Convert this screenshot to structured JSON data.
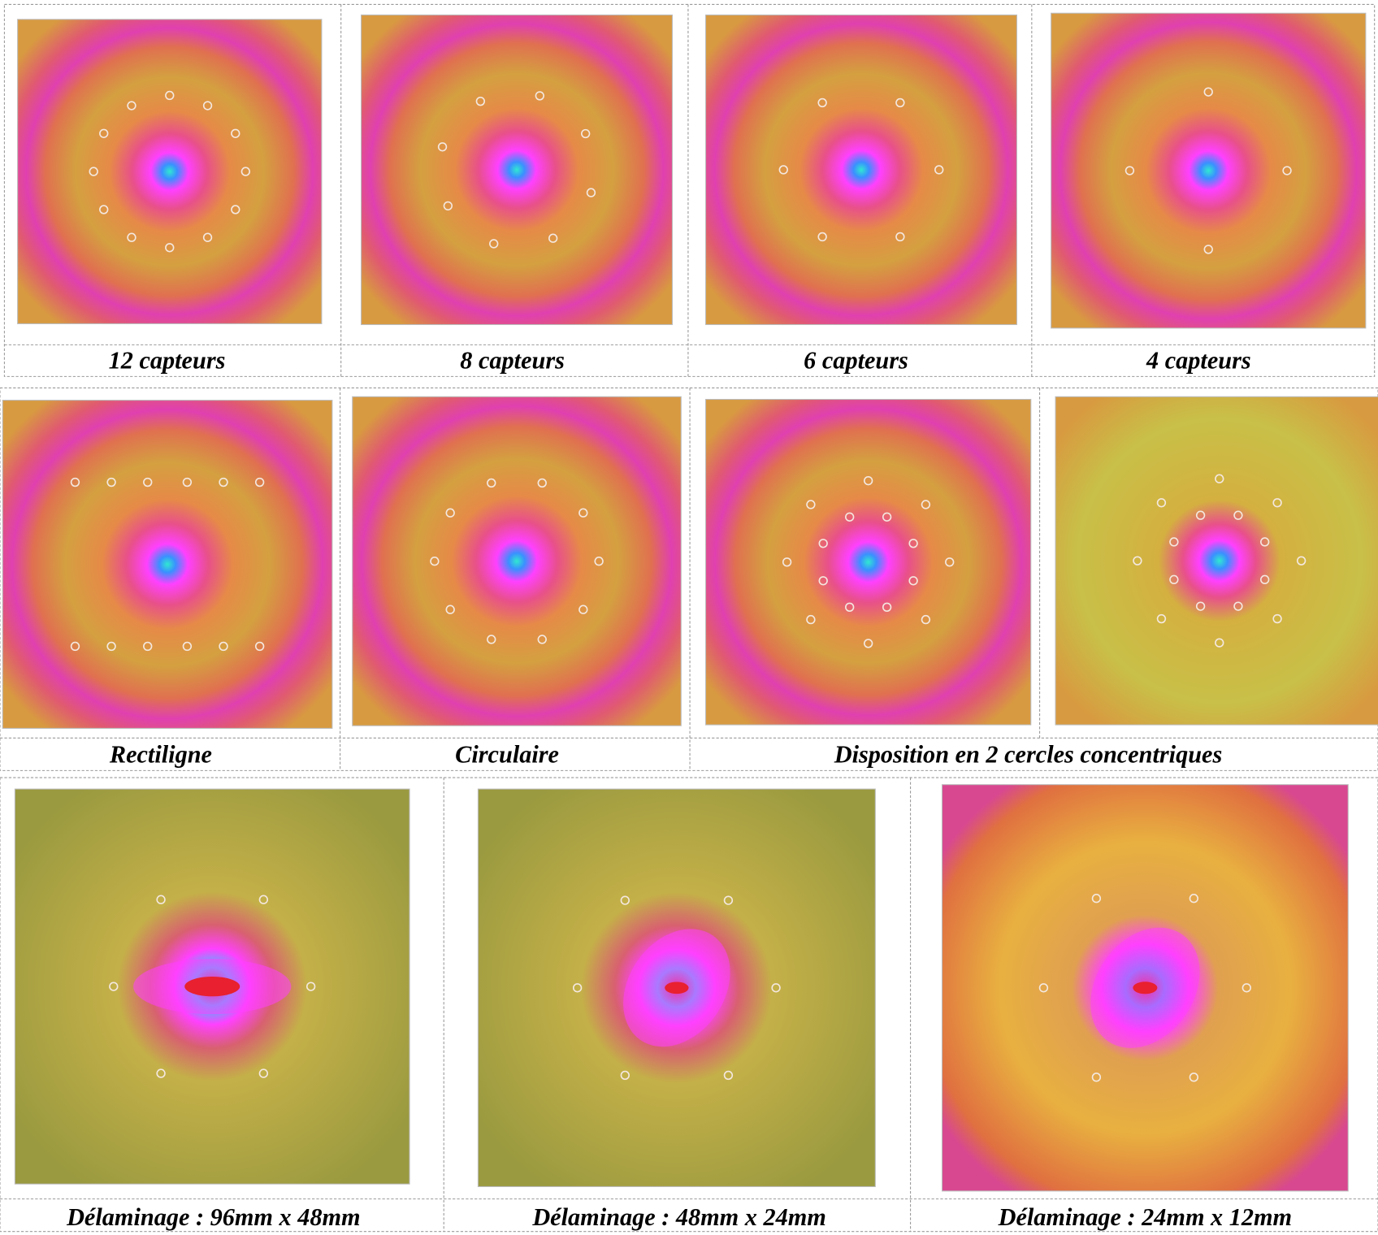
{
  "row1": {
    "captions": [
      "12 capteurs",
      "8 capteurs",
      "6 capteurs",
      "4 capteurs"
    ]
  },
  "row2": {
    "captions": [
      "Rectiligne",
      "Circulaire",
      "Disposition en 2 cercles concentriques"
    ]
  },
  "row3": {
    "captions": [
      "Délaminage : 96mm x 48mm",
      "Délaminage : 48mm x 24mm",
      "Délaminage : 24mm x 12mm"
    ]
  }
}
